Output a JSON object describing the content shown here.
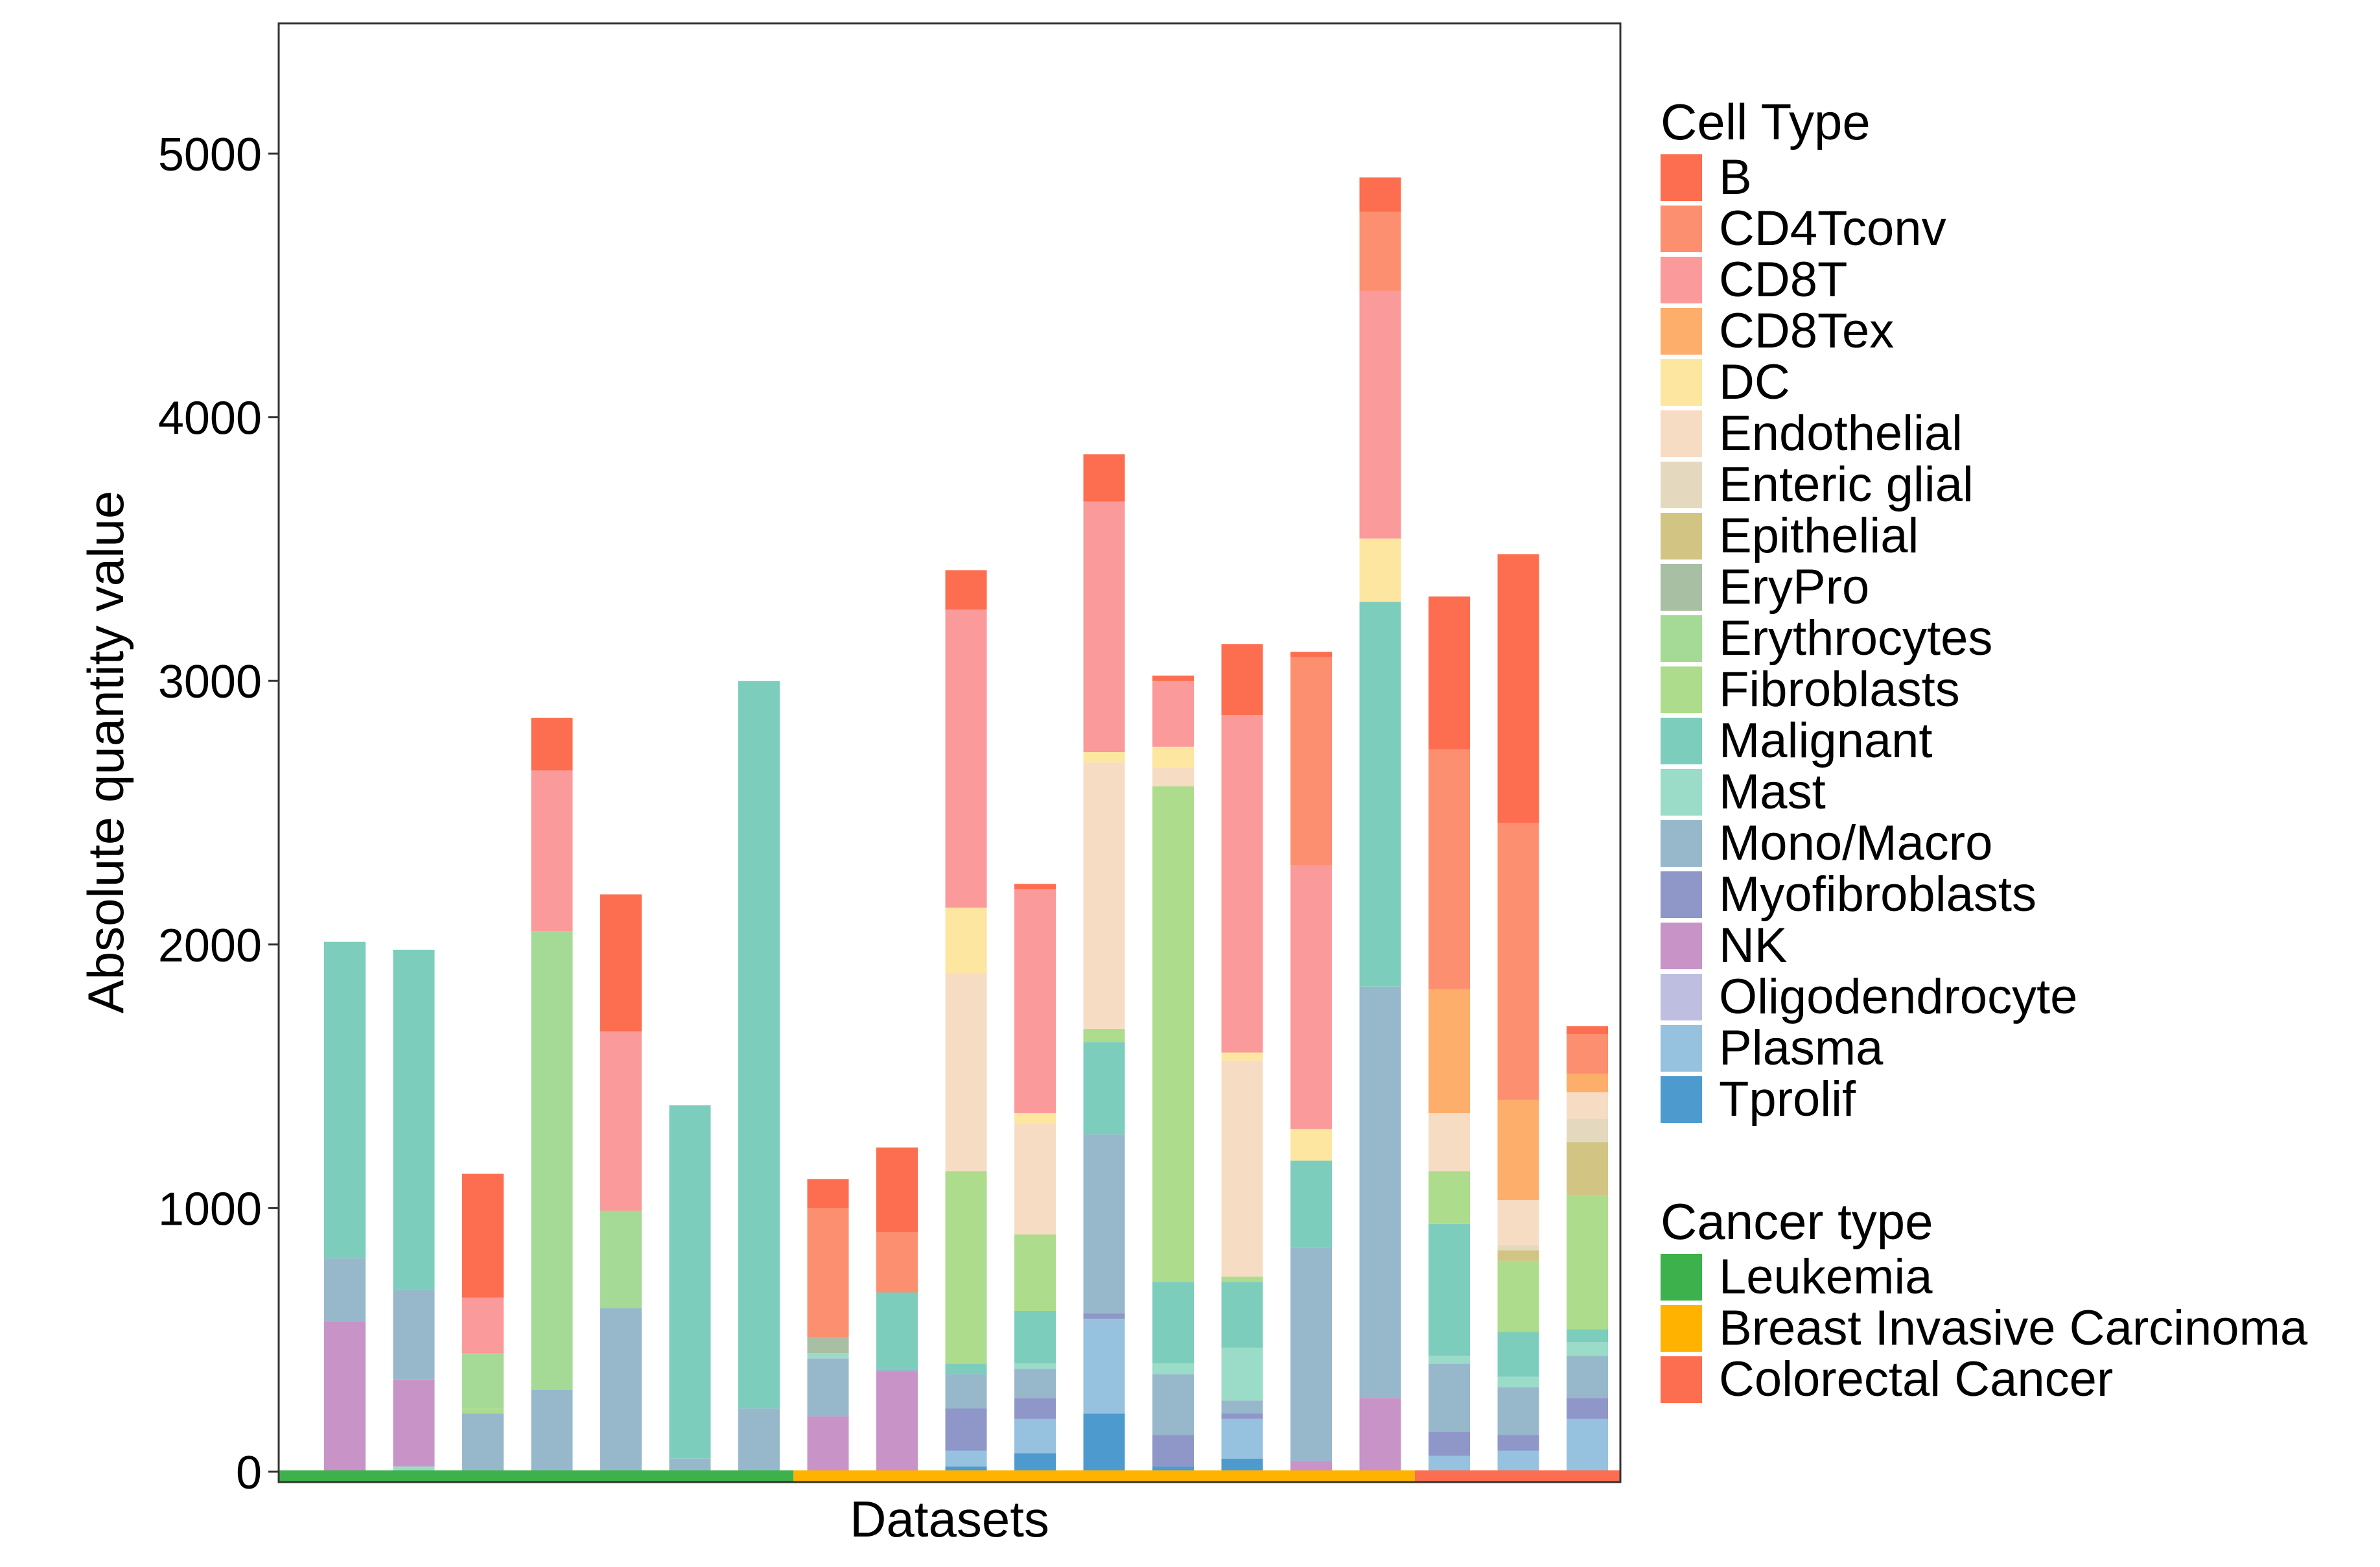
{
  "chart_data": {
    "type": "bar",
    "stacked": true,
    "title": "",
    "xlabel": "Datasets",
    "ylabel": "Absolute quantity value",
    "ylim": [
      -50,
      5500
    ],
    "yticks": [
      0,
      1000,
      2000,
      3000,
      4000,
      5000
    ],
    "ytick_labels": [
      "0",
      "1000",
      "2000",
      "3000",
      "4000",
      "5000"
    ],
    "grid": false,
    "legend_position": "right",
    "cell_type_legend_title": "Cell Type",
    "cancer_type_legend_title": "Cancer type",
    "cell_types": [
      {
        "name": "B",
        "color": "#FC6E4F"
      },
      {
        "name": "CD4Tconv",
        "color": "#FC8F6F"
      },
      {
        "name": "CD8T",
        "color": "#FB9A9A"
      },
      {
        "name": "CD8Tex",
        "color": "#FDAE6B"
      },
      {
        "name": "DC",
        "color": "#FDE6A0"
      },
      {
        "name": "Endothelial",
        "color": "#F7DCC4"
      },
      {
        "name": "Enteric glial",
        "color": "#E4D9BF"
      },
      {
        "name": "Epithelial",
        "color": "#D2C584"
      },
      {
        "name": "EryPro",
        "color": "#A8BFA4"
      },
      {
        "name": "Erythrocytes",
        "color": "#A4DA96"
      },
      {
        "name": "Fibroblasts",
        "color": "#ADDC8C"
      },
      {
        "name": "Malignant",
        "color": "#7DCDBC"
      },
      {
        "name": "Mast",
        "color": "#9BDCC8"
      },
      {
        "name": "Mono/Macro",
        "color": "#97B8CB"
      },
      {
        "name": "Myofibroblasts",
        "color": "#8F96C8"
      },
      {
        "name": "NK",
        "color": "#C893C7"
      },
      {
        "name": "Oligodendrocyte",
        "color": "#BDBEE0"
      },
      {
        "name": "Plasma",
        "color": "#96C2E0"
      },
      {
        "name": "Tprolif",
        "color": "#4D9BCE"
      }
    ],
    "cancer_types": [
      {
        "name": "Leukemia",
        "color": "#3DB14B"
      },
      {
        "name": "Breast Invasive Carcinoma",
        "color": "#FFB300"
      },
      {
        "name": "Colorectal Cancer",
        "color": "#FC6E4F"
      }
    ],
    "datasets": [
      {
        "cancer": "Leukemia",
        "segments": [
          [
            "NK",
            570
          ],
          [
            "Mono/Macro",
            240
          ],
          [
            "Malignant",
            1200
          ]
        ]
      },
      {
        "cancer": "Leukemia",
        "segments": [
          [
            "Mast",
            20
          ],
          [
            "NK",
            330
          ],
          [
            "Mono/Macro",
            340
          ],
          [
            "Malignant",
            1290
          ]
        ]
      },
      {
        "cancer": "Leukemia",
        "segments": [
          [
            "Mono/Macro",
            220
          ],
          [
            "Fibroblasts",
            20
          ],
          [
            "Erythrocytes",
            210
          ],
          [
            "CD8T",
            210
          ],
          [
            "B",
            470
          ]
        ]
      },
      {
        "cancer": "Leukemia",
        "segments": [
          [
            "Mono/Macro",
            310
          ],
          [
            "Erythrocytes",
            1740
          ],
          [
            "CD8T",
            610
          ],
          [
            "B",
            200
          ]
        ]
      },
      {
        "cancer": "Leukemia",
        "segments": [
          [
            "Mono/Macro",
            620
          ],
          [
            "Erythrocytes",
            370
          ],
          [
            "CD8T",
            680
          ],
          [
            "B",
            520
          ]
        ]
      },
      {
        "cancer": "Leukemia",
        "segments": [
          [
            "Mono/Macro",
            50
          ],
          [
            "Malignant",
            1340
          ]
        ]
      },
      {
        "cancer": "Leukemia",
        "segments": [
          [
            "Mono/Macro",
            240
          ],
          [
            "Malignant",
            2760
          ]
        ]
      },
      {
        "cancer": "Breast Invasive Carcinoma",
        "segments": [
          [
            "NK",
            210
          ],
          [
            "Mono/Macro",
            220
          ],
          [
            "Mast",
            20
          ],
          [
            "EryPro",
            60
          ],
          [
            "CD4Tconv",
            490
          ],
          [
            "B",
            110
          ]
        ]
      },
      {
        "cancer": "Breast Invasive Carcinoma",
        "segments": [
          [
            "NK",
            380
          ],
          [
            "Mono/Macro",
            10
          ],
          [
            "Malignant",
            290
          ],
          [
            "CD4Tconv",
            230
          ],
          [
            "B",
            320
          ]
        ]
      },
      {
        "cancer": "Breast Invasive Carcinoma",
        "segments": [
          [
            "Tprolif",
            20
          ],
          [
            "Plasma",
            60
          ],
          [
            "Myofibroblasts",
            160
          ],
          [
            "Mono/Macro",
            130
          ],
          [
            "Malignant",
            40
          ],
          [
            "Fibroblasts",
            730
          ],
          [
            "Endothelial",
            750
          ],
          [
            "DC",
            250
          ],
          [
            "CD8T",
            1130
          ],
          [
            "B",
            150
          ]
        ]
      },
      {
        "cancer": "Breast Invasive Carcinoma",
        "segments": [
          [
            "Tprolif",
            70
          ],
          [
            "Plasma",
            130
          ],
          [
            "Myofibroblasts",
            80
          ],
          [
            "Mono/Macro",
            110
          ],
          [
            "Mast",
            20
          ],
          [
            "Malignant",
            200
          ],
          [
            "Fibroblasts",
            290
          ],
          [
            "Endothelial",
            420
          ],
          [
            "DC",
            40
          ],
          [
            "CD8T",
            850
          ],
          [
            "B",
            20
          ]
        ]
      },
      {
        "cancer": "Breast Invasive Carcinoma",
        "segments": [
          [
            "Tprolif",
            220
          ],
          [
            "Plasma",
            360
          ],
          [
            "Myofibroblasts",
            20
          ],
          [
            "Mono/Macro",
            680
          ],
          [
            "Malignant",
            350
          ],
          [
            "Fibroblasts",
            50
          ],
          [
            "Endothelial",
            1010
          ],
          [
            "DC",
            40
          ],
          [
            "CD8T",
            950
          ],
          [
            "B",
            180
          ]
        ]
      },
      {
        "cancer": "Breast Invasive Carcinoma",
        "segments": [
          [
            "Tprolif",
            20
          ],
          [
            "Myofibroblasts",
            120
          ],
          [
            "Mono/Macro",
            230
          ],
          [
            "Mast",
            40
          ],
          [
            "Malignant",
            310
          ],
          [
            "Fibroblasts",
            1880
          ],
          [
            "Endothelial",
            70
          ],
          [
            "DC",
            80
          ],
          [
            "CD8T",
            250
          ],
          [
            "B",
            20
          ]
        ]
      },
      {
        "cancer": "Breast Invasive Carcinoma",
        "segments": [
          [
            "Tprolif",
            50
          ],
          [
            "Plasma",
            150
          ],
          [
            "Myofibroblasts",
            20
          ],
          [
            "Mono/Macro",
            50
          ],
          [
            "Mast",
            200
          ],
          [
            "Malignant",
            250
          ],
          [
            "Fibroblasts",
            20
          ],
          [
            "Endothelial",
            820
          ],
          [
            "DC",
            30
          ],
          [
            "CD8T",
            1280
          ],
          [
            "B",
            270
          ]
        ]
      },
      {
        "cancer": "Breast Invasive Carcinoma",
        "segments": [
          [
            "NK",
            40
          ],
          [
            "Mono/Macro",
            810
          ],
          [
            "Malignant",
            330
          ],
          [
            "DC",
            120
          ],
          [
            "CD8T",
            1000
          ],
          [
            "CD4Tconv",
            790
          ],
          [
            "B",
            20
          ]
        ]
      },
      {
        "cancer": "Breast Invasive Carcinoma",
        "segments": [
          [
            "NK",
            280
          ],
          [
            "Mono/Macro",
            1560
          ],
          [
            "Malignant",
            1460
          ],
          [
            "DC",
            240
          ],
          [
            "CD8T",
            940
          ],
          [
            "CD4Tconv",
            300
          ],
          [
            "B",
            130
          ]
        ]
      },
      {
        "cancer": "Colorectal Cancer",
        "segments": [
          [
            "Plasma",
            60
          ],
          [
            "Myofibroblasts",
            90
          ],
          [
            "Mono/Macro",
            260
          ],
          [
            "Mast",
            30
          ],
          [
            "Malignant",
            500
          ],
          [
            "Fibroblasts",
            200
          ],
          [
            "Endothelial",
            220
          ],
          [
            "CD8Tex",
            470
          ],
          [
            "CD4Tconv",
            910
          ],
          [
            "B",
            580
          ]
        ]
      },
      {
        "cancer": "Colorectal Cancer",
        "segments": [
          [
            "Plasma",
            80
          ],
          [
            "Myofibroblasts",
            60
          ],
          [
            "Mono/Macro",
            180
          ],
          [
            "Mast",
            40
          ],
          [
            "Malignant",
            170
          ],
          [
            "Fibroblasts",
            270
          ],
          [
            "Epithelial",
            40
          ],
          [
            "Enteric glial",
            20
          ],
          [
            "Endothelial",
            170
          ],
          [
            "CD8Tex",
            380
          ],
          [
            "CD4Tconv",
            1050
          ],
          [
            "B",
            1020
          ]
        ]
      },
      {
        "cancer": "Colorectal Cancer",
        "segments": [
          [
            "Plasma",
            200
          ],
          [
            "Myofibroblasts",
            80
          ],
          [
            "Mono/Macro",
            160
          ],
          [
            "Mast",
            50
          ],
          [
            "Malignant",
            50
          ],
          [
            "Fibroblasts",
            510
          ],
          [
            "Epithelial",
            200
          ],
          [
            "Enteric glial",
            90
          ],
          [
            "Endothelial",
            100
          ],
          [
            "CD8Tex",
            70
          ],
          [
            "CD4Tconv",
            150
          ],
          [
            "B",
            30
          ]
        ]
      }
    ]
  }
}
